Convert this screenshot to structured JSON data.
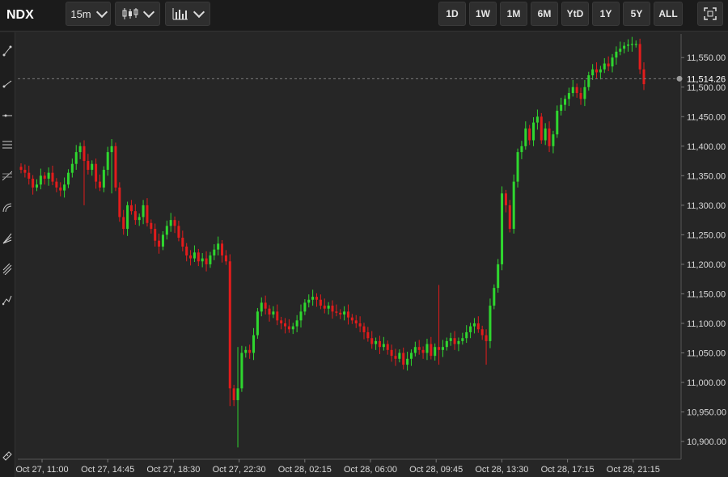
{
  "toolbar": {
    "symbol": "NDX",
    "interval": "15m",
    "chart_type_icon": "candlestick-icon",
    "indicators_icon": "bar-chart-icon",
    "ranges": [
      "1D",
      "1W",
      "1M",
      "6M",
      "YtD",
      "1Y",
      "5Y",
      "ALL"
    ],
    "fullscreen_icon": "fullscreen-icon"
  },
  "drawing_tools": [
    "trendline-icon",
    "ray-icon",
    "horizontal-line-icon",
    "channel-icon",
    "fib-retracement-icon",
    "fib-arc-icon",
    "fib-fan-icon",
    "pitchfork-icon",
    "path-icon",
    "ruler-icon"
  ],
  "colors": {
    "up": "#2fd62f",
    "down": "#e21c1c",
    "background": "#262626",
    "grid": "#2f2f2f",
    "last_line": "#7a7a7a"
  },
  "chart_data": {
    "type": "candlestick",
    "symbol": "NDX",
    "interval": "15m",
    "last_price": "11,514.26",
    "last_value": 11514.26,
    "ylim": [
      10870,
      11590
    ],
    "yticks": [
      10900,
      10950,
      11000,
      11050,
      11100,
      11150,
      11200,
      11250,
      11300,
      11350,
      11400,
      11450,
      11500,
      11550
    ],
    "ytick_labels": [
      "10,900.00",
      "10,950.00",
      "11,000.00",
      "11,050.00",
      "11,100.00",
      "11,150.00",
      "11,200.00",
      "11,250.00",
      "11,300.00",
      "11,350.00",
      "11,400.00",
      "11,450.00",
      "11,500.00",
      "11,550.00"
    ],
    "xtick_labels": [
      "Oct 27, 11:00",
      "Oct 27, 14:45",
      "Oct 27, 18:30",
      "Oct 27, 22:30",
      "Oct 28, 02:15",
      "Oct 28, 06:00",
      "Oct 28, 09:45",
      "Oct 28, 13:30",
      "Oct 28, 17:15",
      "Oct 28, 21:15"
    ],
    "grid": false,
    "close": [
      11360,
      11355,
      11345,
      11330,
      11335,
      11350,
      11345,
      11355,
      11340,
      11330,
      11325,
      11335,
      11355,
      11370,
      11390,
      11400,
      11375,
      11360,
      11370,
      11340,
      11330,
      11360,
      11390,
      11400,
      11330,
      11280,
      11260,
      11300,
      11290,
      11275,
      11280,
      11300,
      11270,
      11260,
      11240,
      11230,
      11250,
      11265,
      11275,
      11265,
      11245,
      11230,
      11215,
      11210,
      11220,
      11205,
      11210,
      11200,
      11215,
      11225,
      11235,
      11215,
      11205,
      10990,
      10970,
      10990,
      11050,
      11055,
      11050,
      11080,
      11120,
      11135,
      11125,
      11115,
      11120,
      11105,
      11100,
      11095,
      11090,
      11095,
      11105,
      11120,
      11135,
      11140,
      11145,
      11140,
      11130,
      11125,
      11130,
      11120,
      11118,
      11115,
      11120,
      11110,
      11105,
      11100,
      11095,
      11085,
      11075,
      11065,
      11070,
      11060,
      11065,
      11055,
      11045,
      11040,
      11050,
      11030,
      11040,
      11050,
      11060,
      11055,
      11050,
      11065,
      11045,
      11060,
      11055,
      11060,
      11070,
      11075,
      11065,
      11070,
      11075,
      11085,
      11095,
      11100,
      11090,
      11080,
      11070,
      11130,
      11160,
      11200,
      11320,
      11300,
      11260,
      11340,
      11390,
      11400,
      11430,
      11410,
      11440,
      11450,
      11410,
      11430,
      11400,
      11420,
      11460,
      11470,
      11480,
      11490,
      11500,
      11490,
      11480,
      11500,
      11520,
      11530,
      11525,
      11530,
      11540,
      11535,
      11550,
      11560,
      11565,
      11570,
      11572,
      11573,
      11573,
      11530,
      11505
    ],
    "volume": []
  }
}
